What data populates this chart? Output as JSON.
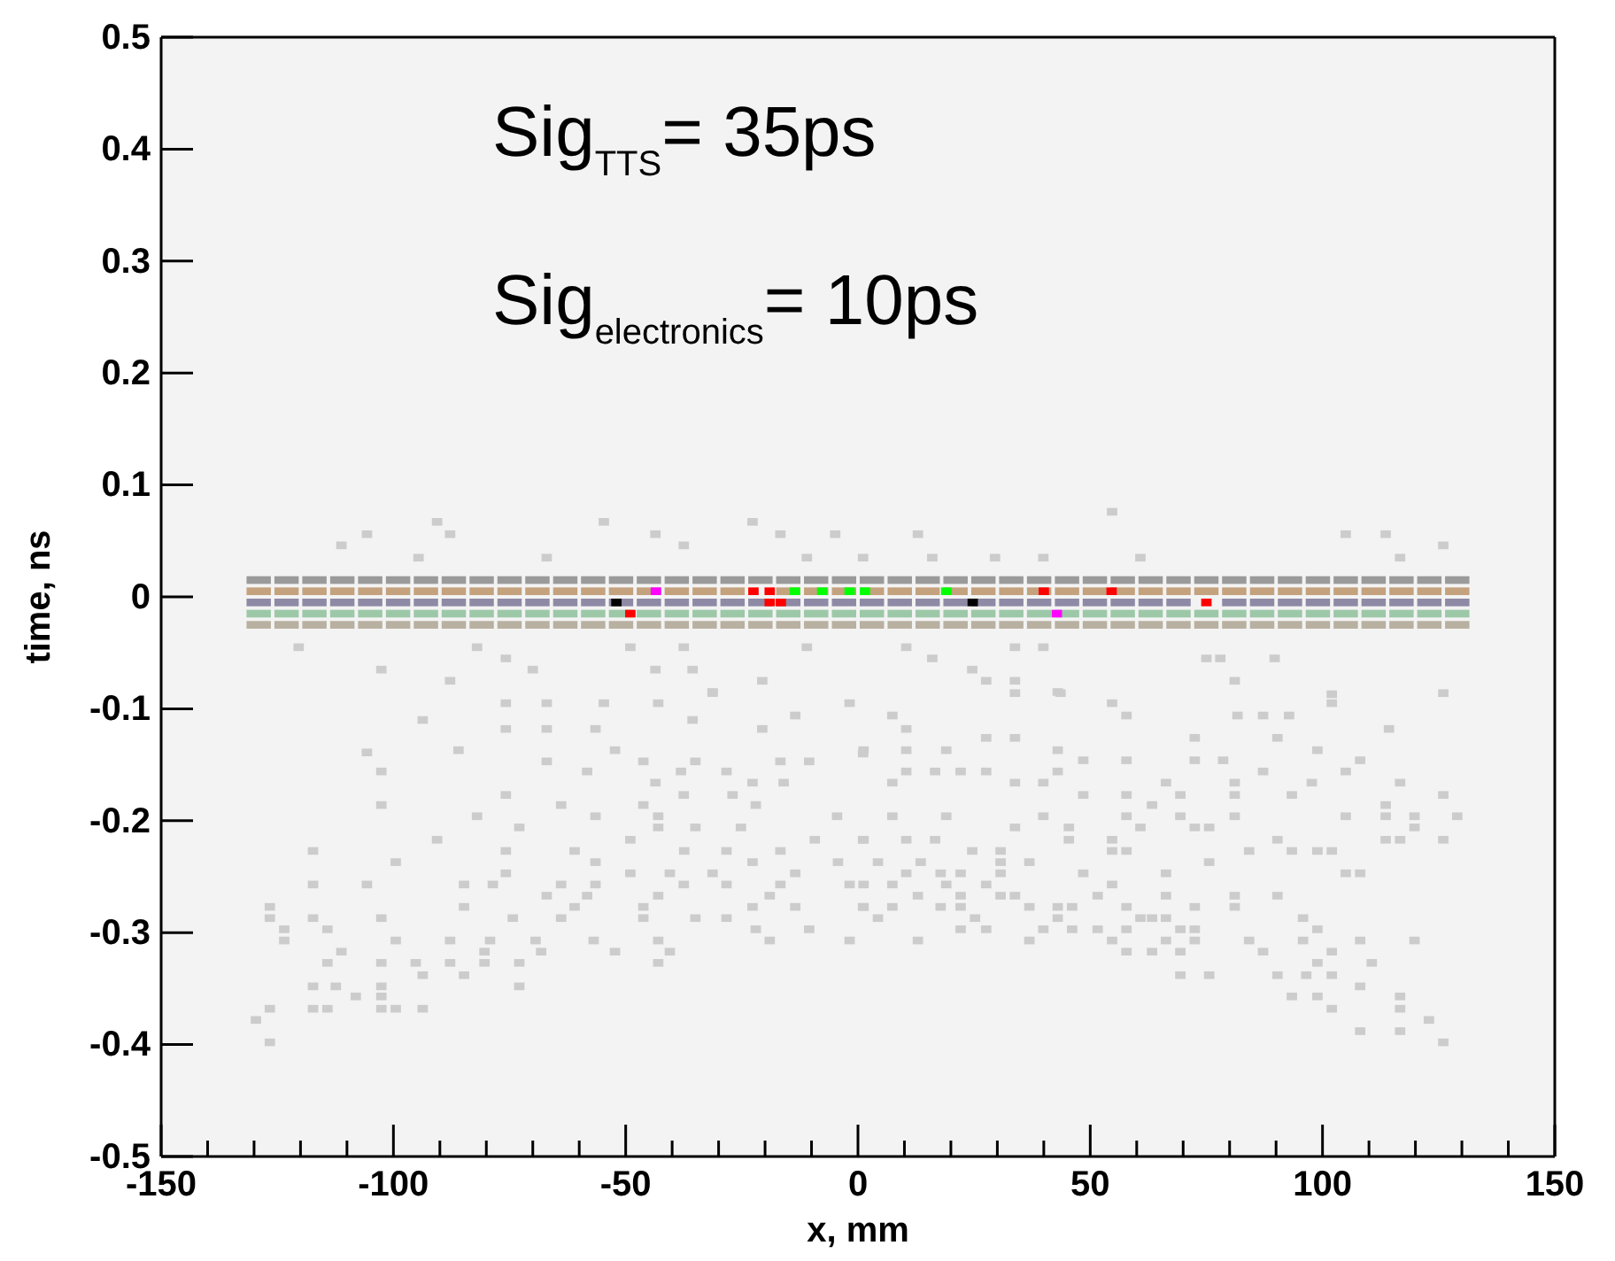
{
  "chart_data": {
    "type": "scatter",
    "xlabel": "x, mm",
    "ylabel": "time, ns",
    "annotations": [
      "Sig$_{TTS}$= 35ps",
      "Sig$_{electronics}$= 10ps"
    ],
    "xlim": [
      -150,
      150
    ],
    "xticks": [
      -150,
      -100,
      -50,
      0,
      50,
      100,
      150
    ],
    "ylim": [
      -0.5,
      0.5
    ],
    "yticks": [
      -0.5,
      -0.4,
      -0.3,
      -0.2,
      -0.1,
      0,
      0.1,
      0.2,
      0.3,
      0.4,
      0.5
    ],
    "grid": false,
    "marker": "square",
    "x": [
      -129,
      -123,
      -117,
      -111,
      -105,
      -99,
      -93,
      -87,
      -81,
      -75,
      -69,
      -63,
      -57,
      -51,
      -45,
      -39,
      -33,
      -27,
      -21,
      -15,
      -9,
      -3,
      3,
      9,
      15,
      21,
      27,
      33,
      39,
      45,
      51,
      57,
      63,
      69,
      75,
      81,
      87,
      93,
      99,
      105,
      111,
      117,
      123,
      129
    ],
    "series": [
      {
        "color": "#9a9a9a",
        "values": [
          0.015,
          0.015,
          0.015,
          0.015,
          0.015,
          0.015,
          0.015,
          0.015,
          0.015,
          0.015,
          0.015,
          0.015,
          0.015,
          0.015,
          0.015,
          0.015,
          0.015,
          0.015,
          0.015,
          0.015,
          0.015,
          0.015,
          0.015,
          0.015,
          0.015,
          0.015,
          0.015,
          0.015,
          0.015,
          0.015,
          0.015,
          0.015,
          0.015,
          0.015,
          0.015,
          0.015,
          0.015,
          0.015,
          0.015,
          0.015,
          0.015,
          0.015,
          0.015,
          0.015
        ]
      },
      {
        "color": "#c4a27e",
        "values": [
          0.005,
          0.005,
          0.005,
          0.005,
          0.005,
          0.005,
          0.005,
          0.005,
          0.005,
          0.005,
          0.005,
          0.005,
          0.005,
          0.005,
          0.005,
          0.005,
          0.005,
          0.005,
          null,
          0.005,
          0.005,
          0.005,
          0.005,
          0.005,
          0.005,
          0.005,
          0.005,
          0.005,
          0.005,
          0.005,
          0.005,
          0.005,
          0.005,
          0.005,
          0.005,
          0.005,
          0.005,
          0.005,
          0.005,
          0.005,
          0.005,
          0.005,
          0.005,
          0.005
        ]
      },
      {
        "color": "#8e8aa6",
        "values": [
          -0.005,
          -0.005,
          -0.005,
          -0.005,
          -0.005,
          -0.005,
          -0.005,
          -0.005,
          -0.005,
          -0.005,
          -0.005,
          -0.005,
          -0.005,
          -0.005,
          -0.005,
          -0.005,
          -0.005,
          -0.005,
          -0.005,
          -0.005,
          -0.005,
          -0.005,
          -0.005,
          -0.005,
          -0.005,
          -0.005,
          -0.005,
          -0.005,
          -0.005,
          -0.005,
          -0.005,
          -0.005,
          -0.005,
          -0.005,
          null,
          -0.005,
          -0.005,
          -0.005,
          -0.005,
          -0.005,
          -0.005,
          -0.005,
          -0.005,
          -0.005
        ]
      },
      {
        "color": "#9cc8a8",
        "values": [
          -0.015,
          -0.015,
          -0.015,
          -0.015,
          -0.015,
          -0.015,
          -0.015,
          -0.015,
          -0.015,
          -0.015,
          -0.015,
          -0.015,
          -0.015,
          -0.015,
          -0.015,
          -0.015,
          -0.015,
          -0.015,
          -0.015,
          -0.015,
          -0.015,
          -0.015,
          -0.015,
          -0.015,
          -0.015,
          -0.015,
          -0.015,
          -0.015,
          -0.015,
          -0.015,
          -0.015,
          -0.015,
          -0.015,
          -0.015,
          -0.015,
          -0.015,
          -0.015,
          -0.015,
          -0.015,
          -0.015,
          -0.015,
          -0.015,
          -0.015,
          -0.015
        ]
      },
      {
        "color": "#b8b0a0",
        "values": [
          -0.025,
          -0.025,
          -0.025,
          -0.025,
          -0.025,
          -0.025,
          -0.025,
          -0.025,
          -0.025,
          -0.025,
          -0.025,
          -0.025,
          -0.025,
          -0.025,
          -0.025,
          -0.025,
          -0.025,
          -0.025,
          -0.025,
          -0.025,
          -0.025,
          -0.025,
          -0.025,
          -0.025,
          -0.025,
          -0.025,
          -0.025,
          -0.025,
          -0.025,
          -0.025,
          -0.025,
          -0.025,
          -0.025,
          -0.025,
          -0.025,
          -0.025,
          -0.025,
          -0.025,
          -0.025,
          -0.025,
          -0.025,
          -0.025,
          -0.025,
          -0.025
        ]
      },
      {
        "color": "#cccccc",
        "x": [
          -90.6,
          -87.8,
          -105.7,
          -111.2,
          -94.6,
          -54.7,
          -43.6,
          -67,
          -37.5,
          -22.7,
          -16.7,
          -4.9,
          -11,
          54.7,
          12.9,
          105,
          113.6,
          126,
          1.1,
          16,
          29.5,
          39.9,
          60.8,
          116.7,
          -120.4,
          -102.6,
          -87.8,
          -82,
          -75.8,
          -70,
          -49,
          -43.6,
          -37.5,
          -35.6,
          -31.3,
          -20.6,
          -11,
          10.4,
          16,
          33.8,
          39.9,
          24.6,
          27.6,
          33.8,
          43,
          75,
          78,
          89.7,
          81.1,
          102,
          -75.8,
          -67,
          -54.7,
          -43,
          -31.3,
          -13.5,
          -1.8,
          -93.7,
          -75.8,
          -67,
          -56.5,
          -35.6,
          -20.6,
          -105.7,
          -86,
          -67,
          -52.3,
          -46.2,
          -35,
          -16.7,
          -10.5,
          1.1,
          -102.6,
          -58.3,
          -38.1,
          -28.3,
          -22.7,
          -16,
          -43.6,
          -75.8,
          -37.5,
          -27,
          -102.6,
          -63.9,
          -46.2,
          -22,
          -82,
          -56.5,
          -43,
          -4.5,
          -72.9,
          -43,
          -35,
          -25.2,
          -90.6,
          -49,
          -9.3,
          1.1,
          -117.3,
          -75.8,
          -61,
          -37.4,
          -28.3,
          -16.7,
          -99.5,
          -56.5,
          -22.7,
          -4.3,
          -75.8,
          -49,
          -40.5,
          -31.3,
          -13.5,
          -117.3,
          -105.7,
          -84.8,
          -78.6,
          -63.9,
          -56.5,
          -37.5,
          -28.3,
          -16.7,
          -1.8,
          -67,
          -58.3,
          -43,
          -19,
          -126.6,
          -84.8,
          -61,
          -46.2,
          -22.7,
          -13.5,
          1.1,
          -126.6,
          -117.3,
          -102.6,
          -74.3,
          -63.9,
          -46.2,
          -35,
          -28.3,
          -123.5,
          -114.2,
          -22,
          -10.5,
          -123.5,
          -99.5,
          -87.8,
          -79.2,
          -69.4,
          -56.9,
          -43,
          -19,
          -1.8,
          -111.2,
          -80.4,
          -68.2,
          -52.3,
          -40.5,
          -114.2,
          -102.6,
          -95.2,
          -87.8,
          -80.4,
          -72.9,
          -43,
          -93.7,
          -84.8,
          -117.3,
          -112.4,
          -102.6,
          -72.9,
          -108.1,
          -102.6,
          -126.6,
          -117.3,
          -114.2,
          -102.6,
          -99.5,
          -93.7,
          -129.6,
          -126.6,
          33.8,
          43.6,
          54.7,
          57.8,
          7.4,
          10.4,
          81.7,
          87.2,
          92.8,
          102,
          114.3,
          126,
          1.2,
          10.4,
          19,
          27.6,
          33.8,
          43,
          48.5,
          57.8,
          72.5,
          72.5,
          78.6,
          90.3,
          98.9,
          108.1,
          7.4,
          10.4,
          16.6,
          22.1,
          27.6,
          33.8,
          39.9,
          43,
          48.5,
          57.8,
          66.3,
          69.4,
          81.1,
          81.1,
          87.2,
          93.4,
          97.7,
          105,
          116.7,
          126,
          7.4,
          19,
          33.8,
          39.9,
          45.4,
          57.8,
          60.8,
          63.3,
          69.4,
          72.5,
          75.6,
          81.1,
          105,
          113.6,
          113.6,
          119.8,
          119.8,
          129,
          1.2,
          10.4,
          16.6,
          45.4,
          54.7,
          54.7,
          57.8,
          84.2,
          90.3,
          93.4,
          98.9,
          102,
          113.6,
          116.7,
          126,
          4.3,
          13.5,
          24.6,
          30.7,
          30.7,
          36.9,
          75.6,
          1.2,
          7.4,
          10.4,
          17.8,
          22.1,
          30.7,
          48.5,
          66.3,
          105,
          108.1,
          12.9,
          19,
          22.1,
          27.6,
          30.7,
          33.8,
          51.6,
          54.7,
          66.3,
          81.1,
          90.3,
          1.2,
          7.4,
          17.8,
          22.1,
          36.9,
          43,
          46.1,
          57.8,
          72.5,
          81.1,
          4.3,
          25.2,
          43,
          46.1,
          60.8,
          63.3,
          66.3,
          95.8,
          22.1,
          27.6,
          39.9,
          51.6,
          57.8,
          69.4,
          72.5,
          98.9,
          12.9,
          36.9,
          54.7,
          66.3,
          72.5,
          84.2,
          95.8,
          108.1,
          119.8,
          57.8,
          63.3,
          69.4,
          87.2,
          102,
          98.9,
          110.6,
          69.4,
          75.6,
          90.3,
          96.5,
          102,
          108.1,
          93.4,
          98.9,
          102,
          116.7,
          116.7,
          116.7,
          108.1,
          122.9,
          126
        ],
        "values": [
          0.067,
          0.056,
          0.056,
          0.046,
          0.035,
          0.067,
          0.056,
          0.035,
          0.046,
          0.067,
          0.056,
          0.056,
          0.035,
          0.076,
          0.056,
          0.056,
          0.056,
          0.046,
          0.035,
          0.035,
          0.035,
          0.035,
          0.035,
          0.035,
          -0.045,
          -0.065,
          -0.075,
          -0.045,
          -0.055,
          -0.065,
          -0.045,
          -0.065,
          -0.045,
          -0.065,
          -0.086,
          -0.075,
          -0.045,
          -0.045,
          -0.055,
          -0.045,
          -0.045,
          -0.065,
          -0.075,
          -0.075,
          -0.085,
          -0.055,
          -0.055,
          -0.055,
          -0.075,
          -0.087,
          -0.095,
          -0.095,
          -0.095,
          -0.095,
          -0.085,
          -0.106,
          -0.095,
          -0.11,
          -0.118,
          -0.118,
          -0.118,
          -0.11,
          -0.118,
          -0.139,
          -0.137,
          -0.147,
          -0.137,
          -0.147,
          -0.147,
          -0.147,
          -0.147,
          -0.14,
          -0.156,
          -0.156,
          -0.156,
          -0.156,
          -0.166,
          -0.166,
          -0.166,
          -0.177,
          -0.177,
          -0.177,
          -0.186,
          -0.186,
          -0.186,
          -0.186,
          -0.196,
          -0.196,
          -0.196,
          -0.196,
          -0.206,
          -0.206,
          -0.206,
          -0.206,
          -0.217,
          -0.217,
          -0.217,
          -0.217,
          -0.227,
          -0.227,
          -0.227,
          -0.227,
          -0.227,
          -0.227,
          -0.237,
          -0.237,
          -0.237,
          -0.237,
          -0.247,
          -0.247,
          -0.247,
          -0.247,
          -0.247,
          -0.257,
          -0.257,
          -0.257,
          -0.257,
          -0.257,
          -0.257,
          -0.257,
          -0.257,
          -0.257,
          -0.257,
          -0.267,
          -0.267,
          -0.267,
          -0.267,
          -0.277,
          -0.277,
          -0.277,
          -0.277,
          -0.277,
          -0.277,
          -0.277,
          -0.287,
          -0.287,
          -0.287,
          -0.287,
          -0.287,
          -0.287,
          -0.287,
          -0.287,
          -0.297,
          -0.297,
          -0.297,
          -0.297,
          -0.307,
          -0.307,
          -0.307,
          -0.307,
          -0.307,
          -0.307,
          -0.307,
          -0.307,
          -0.307,
          -0.317,
          -0.317,
          -0.317,
          -0.317,
          -0.317,
          -0.327,
          -0.327,
          -0.327,
          -0.327,
          -0.327,
          -0.327,
          -0.327,
          -0.338,
          -0.338,
          -0.348,
          -0.348,
          -0.348,
          -0.348,
          -0.357,
          -0.357,
          -0.368,
          -0.368,
          -0.368,
          -0.368,
          -0.368,
          -0.368,
          -0.378,
          -0.398,
          -0.086,
          -0.086,
          -0.095,
          -0.106,
          -0.106,
          -0.118,
          -0.106,
          -0.106,
          -0.106,
          -0.095,
          -0.118,
          -0.086,
          -0.137,
          -0.137,
          -0.137,
          -0.126,
          -0.126,
          -0.137,
          -0.146,
          -0.146,
          -0.126,
          -0.146,
          -0.146,
          -0.126,
          -0.137,
          -0.146,
          -0.166,
          -0.156,
          -0.156,
          -0.156,
          -0.156,
          -0.166,
          -0.166,
          -0.156,
          -0.177,
          -0.177,
          -0.166,
          -0.177,
          -0.166,
          -0.177,
          -0.156,
          -0.177,
          -0.166,
          -0.156,
          -0.166,
          -0.177,
          -0.196,
          -0.196,
          -0.206,
          -0.196,
          -0.206,
          -0.196,
          -0.206,
          -0.186,
          -0.196,
          -0.206,
          -0.206,
          -0.196,
          -0.196,
          -0.186,
          -0.196,
          -0.196,
          -0.206,
          -0.196,
          -0.217,
          -0.217,
          -0.217,
          -0.217,
          -0.217,
          -0.227,
          -0.227,
          -0.227,
          -0.217,
          -0.227,
          -0.227,
          -0.227,
          -0.217,
          -0.217,
          -0.217,
          -0.237,
          -0.237,
          -0.227,
          -0.227,
          -0.237,
          -0.237,
          -0.237,
          -0.257,
          -0.257,
          -0.247,
          -0.247,
          -0.247,
          -0.247,
          -0.247,
          -0.247,
          -0.247,
          -0.247,
          -0.267,
          -0.257,
          -0.267,
          -0.257,
          -0.267,
          -0.267,
          -0.267,
          -0.257,
          -0.267,
          -0.267,
          -0.267,
          -0.277,
          -0.277,
          -0.277,
          -0.277,
          -0.277,
          -0.277,
          -0.277,
          -0.277,
          -0.277,
          -0.277,
          -0.287,
          -0.287,
          -0.287,
          -0.297,
          -0.287,
          -0.287,
          -0.287,
          -0.287,
          -0.297,
          -0.297,
          -0.297,
          -0.297,
          -0.297,
          -0.297,
          -0.297,
          -0.297,
          -0.307,
          -0.307,
          -0.307,
          -0.307,
          -0.307,
          -0.307,
          -0.307,
          -0.307,
          -0.307,
          -0.317,
          -0.317,
          -0.317,
          -0.317,
          -0.317,
          -0.327,
          -0.327,
          -0.338,
          -0.338,
          -0.338,
          -0.338,
          -0.338,
          -0.348,
          -0.357,
          -0.357,
          -0.368,
          -0.357,
          -0.368,
          -0.388,
          -0.388,
          -0.378,
          -0.398
        ]
      },
      {
        "color": "#ff0000",
        "x": [
          -49,
          -22.5,
          -19,
          -19,
          -16.6,
          40,
          54.6,
          75
        ],
        "values": [
          -0.015,
          0.005,
          0.005,
          -0.005,
          -0.005,
          0.005,
          0.005,
          -0.005
        ]
      },
      {
        "color": "#00ff00",
        "x": [
          -13.6,
          -7.7,
          -1.8,
          1.5,
          19
        ],
        "values": [
          0.005,
          0.005,
          0.005,
          0.005,
          0.005
        ]
      },
      {
        "color": "#ff00ff",
        "x": [
          -43.5,
          42.8
        ],
        "values": [
          0.005,
          -0.015
        ]
      },
      {
        "color": "#000000",
        "x": [
          -52,
          24.7
        ],
        "values": [
          -0.005,
          -0.005
        ]
      }
    ]
  }
}
